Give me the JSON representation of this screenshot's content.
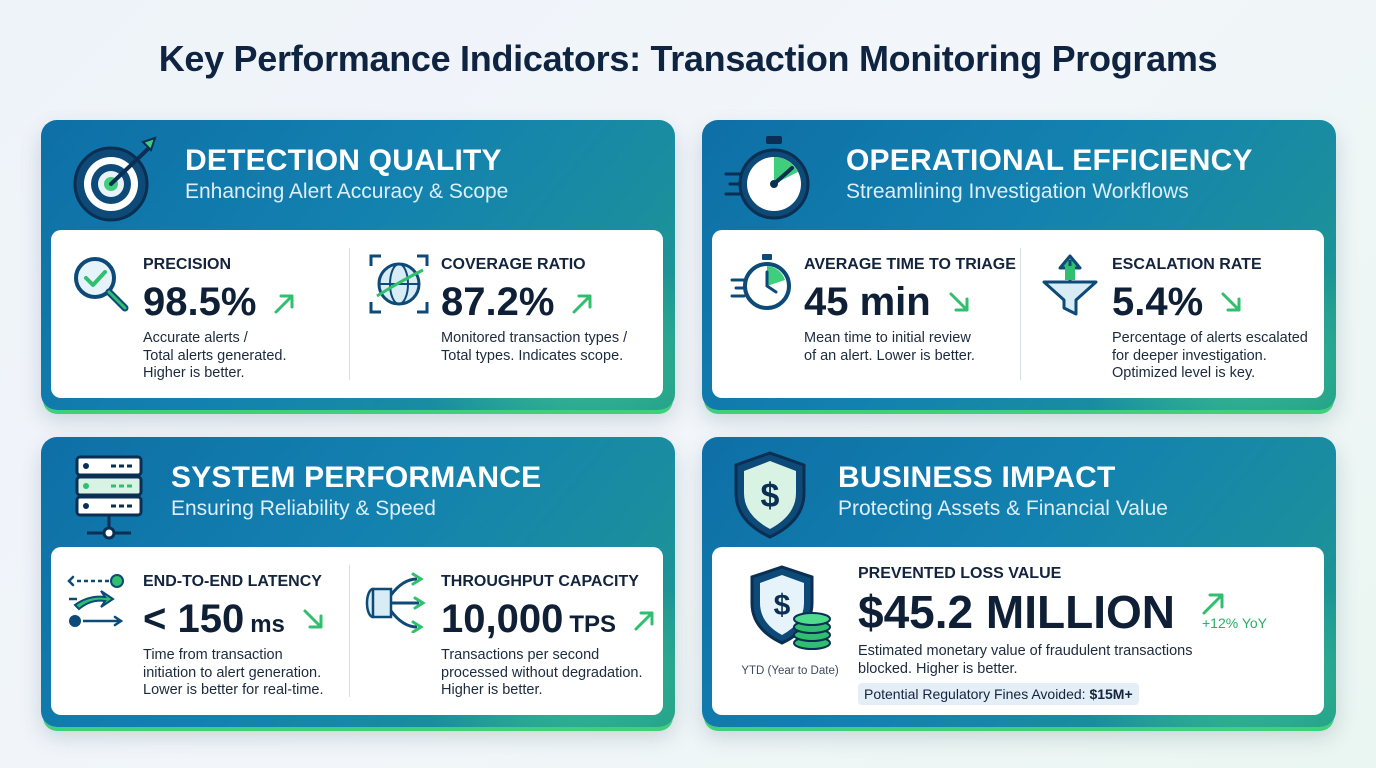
{
  "page": {
    "title": "Key Performance Indicators: Transaction Monitoring Programs"
  },
  "colors": {
    "card_blue": "#0e6fa6",
    "accent_green": "#2fbf6e",
    "text_dark": "#0f2036"
  },
  "cards": {
    "detection": {
      "title": "DETECTION QUALITY",
      "subtitle": "Enhancing Alert Accuracy & Scope",
      "icon": "target-dart-icon",
      "metrics": [
        {
          "label": "PRECISION",
          "value": "98.5%",
          "unit": "",
          "trend": "up",
          "desc": "Accurate alerts /\nTotal alerts generated.\nHigher is better.",
          "icon": "magnifier-check-icon"
        },
        {
          "label": "COVERAGE RATIO",
          "value": "87.2%",
          "unit": "",
          "trend": "up",
          "desc": "Monitored transaction types /\nTotal types. Indicates scope.",
          "icon": "globe-scope-icon"
        }
      ]
    },
    "efficiency": {
      "title": "OPERATIONAL EFFICIENCY",
      "subtitle": "Streamlining Investigation Workflows",
      "icon": "stopwatch-icon",
      "metrics": [
        {
          "label": "AVERAGE TIME TO TRIAGE",
          "value": "45 min",
          "unit": "",
          "trend": "down",
          "desc": "Mean time to initial review\nof an alert. Lower is better.",
          "icon": "fast-clock-icon"
        },
        {
          "label": "ESCALATION RATE",
          "value": "5.4%",
          "unit": "",
          "trend": "down",
          "desc": "Percentage of alerts escalated\nfor deeper investigation.\nOptimized level is key.",
          "icon": "funnel-up-icon"
        }
      ]
    },
    "system": {
      "title": "SYSTEM PERFORMANCE",
      "subtitle": "Ensuring Reliability & Speed",
      "icon": "server-stack-icon",
      "metrics": [
        {
          "label": "END-TO-END LATENCY",
          "value": "< 150",
          "unit": "ms",
          "trend": "down",
          "desc": "Time from transaction\ninitiation to alert generation.\nLower is better for real-time.",
          "icon": "latency-flow-icon"
        },
        {
          "label": "THROUGHPUT CAPACITY",
          "value": "10,000",
          "unit": "TPS",
          "trend": "up",
          "desc": "Transactions per second\nprocessed without degradation.\nHigher is better.",
          "icon": "pipe-split-icon"
        }
      ]
    },
    "business": {
      "title": "BUSINESS IMPACT",
      "subtitle": "Protecting Assets & Financial Value",
      "icon": "dollar-shield-icon",
      "metric": {
        "label": "PREVENTED LOSS VALUE",
        "value": "$45.2 MILLION",
        "trend": "up",
        "yoy": "+12% YoY",
        "period": "YTD (Year to Date)",
        "desc": "Estimated monetary value of fraudulent transactions\nblocked. Higher is better.",
        "pill_label": "Potential Regulatory Fines Avoided: ",
        "pill_value": "$15M+",
        "icon": "shield-coins-icon"
      }
    }
  }
}
